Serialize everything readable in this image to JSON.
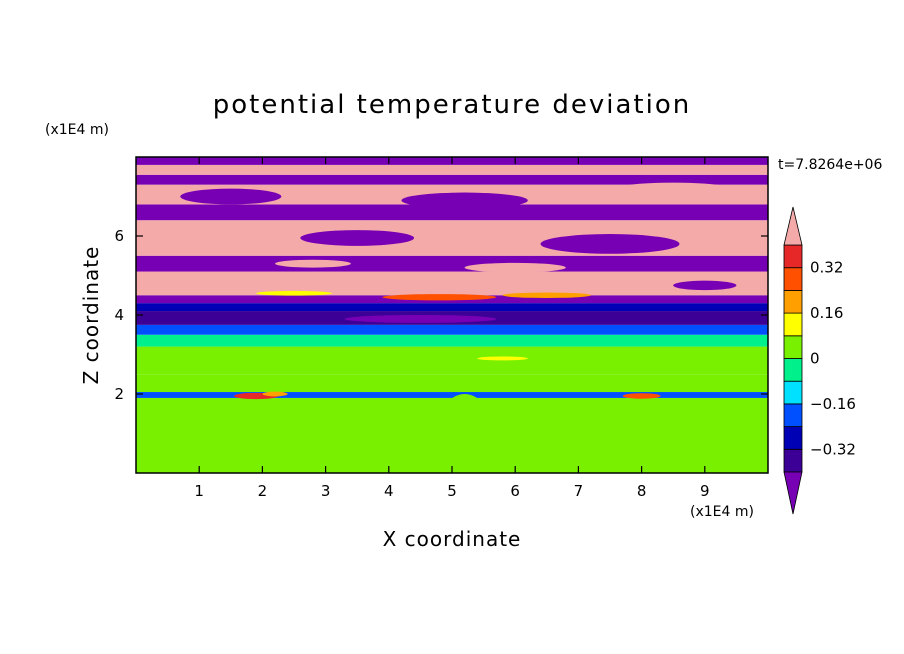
{
  "chart_data": {
    "type": "heatmap",
    "title": "potential temperature deviation",
    "xlabel": "X coordinate",
    "ylabel": "Z coordinate",
    "x_units": "(x1E4 m)",
    "z_units": "(x1E4 m)",
    "time_label": "t=7.8264e+06",
    "x_range": [
      0,
      10
    ],
    "z_range": [
      0,
      8
    ],
    "x_ticks": [
      "1",
      "2",
      "3",
      "4",
      "5",
      "6",
      "7",
      "8",
      "9"
    ],
    "z_ticks": [
      "2",
      "4",
      "6"
    ],
    "colorbar": {
      "tick_labels": [
        "0.32",
        "0.16",
        "0",
        "−0.16",
        "−0.32"
      ],
      "tick_values": [
        0.32,
        0.16,
        0,
        -0.16,
        -0.32
      ],
      "levels": [
        -0.4,
        -0.32,
        -0.24,
        -0.16,
        -0.08,
        0,
        0.08,
        0.16,
        0.24,
        0.32,
        0.4
      ],
      "colors": [
        "#3c0096",
        "#0000b4",
        "#0050ff",
        "#00e0ff",
        "#00f08c",
        "#78f000",
        "#ffff00",
        "#ffa000",
        "#ff5000",
        "#e62828"
      ],
      "under_color": "#7800b4",
      "over_color": "#f5aaaa",
      "extend": "both"
    },
    "bands": [
      {
        "z0": 0.0,
        "z1": 1.9,
        "value": 0.04
      },
      {
        "z0": 1.9,
        "z1": 2.05,
        "value": -0.2
      },
      {
        "z0": 2.05,
        "z1": 2.5,
        "value": 0.0
      },
      {
        "z0": 2.5,
        "z1": 3.2,
        "value": 0.02
      },
      {
        "z0": 3.2,
        "z1": 3.5,
        "value": -0.05
      },
      {
        "z0": 3.5,
        "z1": 3.75,
        "value": -0.2
      },
      {
        "z0": 3.75,
        "z1": 4.1,
        "value": -0.36
      },
      {
        "z0": 4.1,
        "z1": 4.3,
        "value": -0.25
      },
      {
        "z0": 4.3,
        "z1": 4.5,
        "value": -0.45
      },
      {
        "z0": 4.5,
        "z1": 5.1,
        "value": 0.45
      },
      {
        "z0": 5.1,
        "z1": 5.5,
        "value": -0.45
      },
      {
        "z0": 5.5,
        "z1": 6.4,
        "value": 0.45
      },
      {
        "z0": 6.4,
        "z1": 6.8,
        "value": -0.45
      },
      {
        "z0": 6.8,
        "z1": 7.3,
        "value": 0.45
      },
      {
        "z0": 7.3,
        "z1": 7.55,
        "value": -0.45
      },
      {
        "z0": 7.55,
        "z1": 7.8,
        "value": 0.45
      },
      {
        "z0": 7.8,
        "z1": 8.0,
        "value": -0.45
      }
    ],
    "blobs": [
      {
        "x": 1.3,
        "z": 1.0,
        "rx": 0.8,
        "rz": 0.7,
        "value": 0.02
      },
      {
        "x": 3.8,
        "z": 0.9,
        "rx": 0.9,
        "rz": 0.5,
        "value": 0.02
      },
      {
        "x": 5.2,
        "z": 1.2,
        "rx": 0.4,
        "rz": 0.8,
        "value": 0.02
      },
      {
        "x": 6.8,
        "z": 0.8,
        "rx": 0.5,
        "rz": 0.5,
        "value": 0.02
      },
      {
        "x": 8.5,
        "z": 1.1,
        "rx": 0.6,
        "rz": 0.6,
        "value": 0.02
      },
      {
        "x": 1.9,
        "z": 1.95,
        "rx": 0.35,
        "rz": 0.08,
        "value": 0.36
      },
      {
        "x": 2.2,
        "z": 2.0,
        "rx": 0.2,
        "rz": 0.06,
        "value": 0.2
      },
      {
        "x": 8.0,
        "z": 1.95,
        "rx": 0.3,
        "rz": 0.07,
        "value": 0.3
      },
      {
        "x": 4.8,
        "z": 4.45,
        "rx": 0.9,
        "rz": 0.08,
        "value": 0.3
      },
      {
        "x": 6.5,
        "z": 4.5,
        "rx": 0.7,
        "rz": 0.07,
        "value": 0.2
      },
      {
        "x": 2.5,
        "z": 4.55,
        "rx": 0.6,
        "rz": 0.06,
        "value": 0.1
      },
      {
        "x": 3.5,
        "z": 5.95,
        "rx": 0.9,
        "rz": 0.2,
        "value": -0.45
      },
      {
        "x": 7.5,
        "z": 5.8,
        "rx": 1.1,
        "rz": 0.25,
        "value": -0.45
      },
      {
        "x": 5.2,
        "z": 6.9,
        "rx": 1.0,
        "rz": 0.2,
        "value": -0.45
      },
      {
        "x": 1.5,
        "z": 7.0,
        "rx": 0.8,
        "rz": 0.2,
        "value": -0.45
      },
      {
        "x": 8.5,
        "z": 7.2,
        "rx": 0.9,
        "rz": 0.15,
        "value": 0.45
      },
      {
        "x": 6.0,
        "z": 5.2,
        "rx": 0.8,
        "rz": 0.12,
        "value": 0.45
      },
      {
        "x": 2.8,
        "z": 5.3,
        "rx": 0.6,
        "rz": 0.1,
        "value": 0.45
      },
      {
        "x": 9.0,
        "z": 4.75,
        "rx": 0.5,
        "rz": 0.12,
        "value": -0.45
      },
      {
        "x": 4.5,
        "z": 3.9,
        "rx": 1.2,
        "rz": 0.1,
        "value": -0.45
      },
      {
        "x": 5.8,
        "z": 2.9,
        "rx": 0.4,
        "rz": 0.05,
        "value": 0.1
      }
    ]
  }
}
